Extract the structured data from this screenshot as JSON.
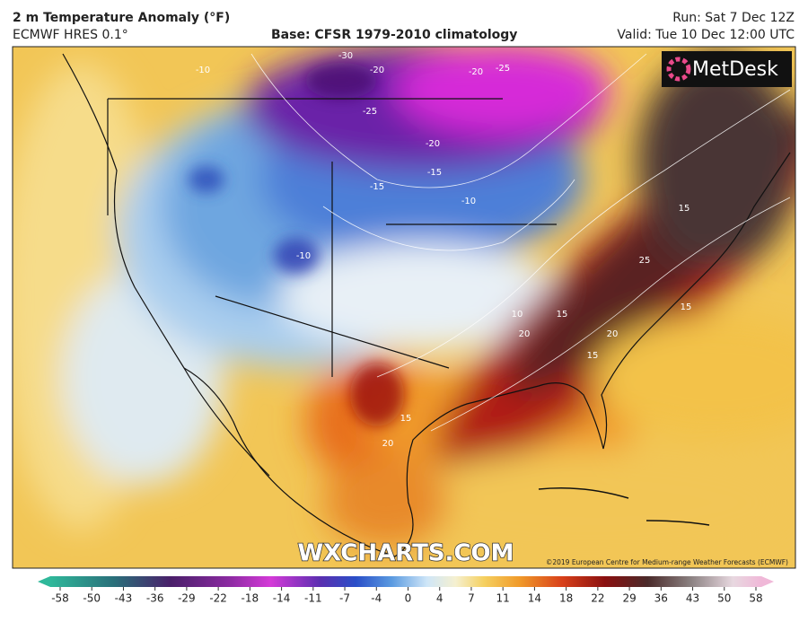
{
  "header": {
    "title": "2 m Temperature Anomaly (°F)",
    "model": "ECMWF HRES 0.1°",
    "base": "Base: CFSR 1979-2010 climatology",
    "run": "Run: Sat 7 Dec 12Z",
    "valid": "Valid: Tue 10 Dec 12:00 UTC"
  },
  "logo": "MetDesk",
  "watermark": "WXCHARTS.COM",
  "copyright": "©2019 European Centre for Medium-range Weather Forecasts (ECMWF)",
  "contour_labels": [
    -30,
    -20,
    -20,
    -25,
    -25,
    -20,
    -15,
    -15,
    -10,
    -10,
    -10,
    10,
    15,
    20,
    15,
    25,
    20,
    15,
    15,
    15,
    20
  ],
  "colorbar": {
    "ticks": [
      -58,
      -50,
      -43,
      -36,
      -29,
      -22,
      -18,
      -14,
      -11,
      -7,
      -4,
      0,
      4,
      7,
      11,
      14,
      18,
      22,
      29,
      36,
      43,
      50,
      58
    ]
  }
}
